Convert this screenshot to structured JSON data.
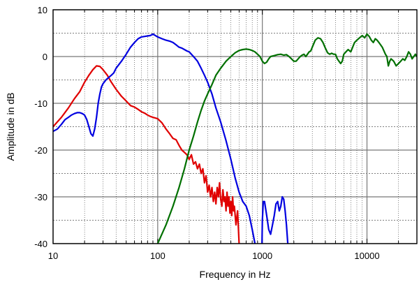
{
  "chart_data": {
    "type": "line",
    "xlabel": "Frequency in Hz",
    "ylabel": "Amplitude in dB",
    "x_scale": "log",
    "xlim": [
      10,
      30000
    ],
    "ylim": [
      -40,
      10
    ],
    "x_ticks": [
      10,
      100,
      1000,
      10000
    ],
    "x_tick_labels": [
      "10",
      "100",
      "1000",
      "10000"
    ],
    "y_ticks": [
      10,
      0,
      -10,
      -20,
      -30,
      -40
    ],
    "y_tick_labels": [
      "10",
      "0",
      "-10",
      "-20",
      "-30",
      "-40"
    ],
    "grid": true,
    "series": [
      {
        "color": "#e00000",
        "points": [
          [
            10,
            -15
          ],
          [
            12,
            -13
          ],
          [
            14,
            -11
          ],
          [
            16,
            -9
          ],
          [
            18,
            -7.5
          ],
          [
            20,
            -5.5
          ],
          [
            22,
            -4
          ],
          [
            24,
            -2.8
          ],
          [
            26,
            -2
          ],
          [
            28,
            -2.1
          ],
          [
            30,
            -2.8
          ],
          [
            33,
            -4
          ],
          [
            36,
            -5.5
          ],
          [
            40,
            -7
          ],
          [
            45,
            -8.5
          ],
          [
            50,
            -9.5
          ],
          [
            55,
            -10.5
          ],
          [
            60,
            -10.8
          ],
          [
            65,
            -11.3
          ],
          [
            70,
            -11.8
          ],
          [
            75,
            -12.1
          ],
          [
            80,
            -12.5
          ],
          [
            85,
            -12.8
          ],
          [
            90,
            -13
          ],
          [
            100,
            -13.3
          ],
          [
            110,
            -14.2
          ],
          [
            120,
            -15.5
          ],
          [
            130,
            -16.5
          ],
          [
            140,
            -17.5
          ],
          [
            150,
            -17.8
          ],
          [
            160,
            -19
          ],
          [
            170,
            -20
          ],
          [
            180,
            -20.5
          ],
          [
            190,
            -21
          ],
          [
            200,
            -22
          ],
          [
            210,
            -21
          ],
          [
            220,
            -23
          ],
          [
            230,
            -22.5
          ],
          [
            240,
            -24
          ],
          [
            250,
            -23
          ],
          [
            260,
            -25
          ],
          [
            270,
            -24
          ],
          [
            280,
            -27
          ],
          [
            290,
            -25.5
          ],
          [
            300,
            -29
          ],
          [
            310,
            -27.5
          ],
          [
            320,
            -30
          ],
          [
            330,
            -28
          ],
          [
            340,
            -31
          ],
          [
            350,
            -29
          ],
          [
            360,
            -31.5
          ],
          [
            370,
            -28
          ],
          [
            380,
            -30
          ],
          [
            390,
            -27
          ],
          [
            400,
            -30.5
          ],
          [
            410,
            -32
          ],
          [
            420,
            -28.5
          ],
          [
            430,
            -31
          ],
          [
            440,
            -30
          ],
          [
            450,
            -33
          ],
          [
            460,
            -29
          ],
          [
            470,
            -32
          ],
          [
            480,
            -30
          ],
          [
            490,
            -33.5
          ],
          [
            500,
            -31
          ],
          [
            510,
            -34
          ],
          [
            520,
            -30
          ],
          [
            530,
            -33
          ],
          [
            540,
            -32
          ],
          [
            560,
            -36
          ],
          [
            580,
            -33
          ],
          [
            600,
            -40
          ]
        ]
      },
      {
        "color": "#0000e0",
        "points": [
          [
            10,
            -16
          ],
          [
            11,
            -15.5
          ],
          [
            12,
            -14.5
          ],
          [
            13,
            -13.5
          ],
          [
            14,
            -13
          ],
          [
            15,
            -12.5
          ],
          [
            16,
            -12.2
          ],
          [
            17,
            -12
          ],
          [
            18,
            -12
          ],
          [
            19,
            -12.2
          ],
          [
            20,
            -12.5
          ],
          [
            21,
            -13.5
          ],
          [
            22,
            -15
          ],
          [
            23,
            -16.5
          ],
          [
            24,
            -17
          ],
          [
            25,
            -15.5
          ],
          [
            26,
            -13
          ],
          [
            27,
            -10
          ],
          [
            28,
            -8
          ],
          [
            29,
            -6.5
          ],
          [
            30,
            -5.8
          ],
          [
            32,
            -5
          ],
          [
            34,
            -4.5
          ],
          [
            36,
            -4
          ],
          [
            38,
            -3.5
          ],
          [
            40,
            -2.5
          ],
          [
            45,
            -1
          ],
          [
            50,
            0.5
          ],
          [
            55,
            2
          ],
          [
            60,
            3
          ],
          [
            65,
            3.8
          ],
          [
            70,
            4.2
          ],
          [
            75,
            4.3
          ],
          [
            80,
            4.4
          ],
          [
            85,
            4.5
          ],
          [
            90,
            4.8
          ],
          [
            95,
            4.5
          ],
          [
            100,
            4.2
          ],
          [
            110,
            3.8
          ],
          [
            120,
            3.5
          ],
          [
            130,
            3.3
          ],
          [
            140,
            3
          ],
          [
            150,
            2.5
          ],
          [
            160,
            2
          ],
          [
            170,
            1.8
          ],
          [
            180,
            1.5
          ],
          [
            190,
            1.2
          ],
          [
            200,
            1
          ],
          [
            220,
            0
          ],
          [
            240,
            -1
          ],
          [
            260,
            -2.5
          ],
          [
            280,
            -4
          ],
          [
            300,
            -5.5
          ],
          [
            330,
            -8
          ],
          [
            360,
            -11
          ],
          [
            400,
            -14
          ],
          [
            450,
            -18
          ],
          [
            500,
            -22
          ],
          [
            550,
            -26
          ],
          [
            600,
            -29
          ],
          [
            650,
            -31
          ],
          [
            700,
            -32
          ],
          [
            750,
            -34
          ],
          [
            800,
            -37
          ],
          [
            850,
            -40
          ],
          [
            900,
            -44
          ]
        ],
        "points2": [
          [
            990,
            -42
          ],
          [
            1000,
            -35
          ],
          [
            1020,
            -31
          ],
          [
            1050,
            -31
          ],
          [
            1100,
            -34
          ],
          [
            1150,
            -37
          ],
          [
            1200,
            -38
          ],
          [
            1250,
            -36
          ],
          [
            1300,
            -34
          ],
          [
            1350,
            -31.5
          ],
          [
            1400,
            -31
          ],
          [
            1450,
            -33
          ],
          [
            1500,
            -32
          ],
          [
            1550,
            -30
          ],
          [
            1600,
            -30.5
          ],
          [
            1650,
            -33
          ],
          [
            1700,
            -36
          ],
          [
            1750,
            -40
          ],
          [
            1800,
            -42
          ]
        ]
      },
      {
        "color": "#007000",
        "points": [
          [
            100,
            -40
          ],
          [
            120,
            -36
          ],
          [
            140,
            -32
          ],
          [
            160,
            -28
          ],
          [
            180,
            -24
          ],
          [
            200,
            -20
          ],
          [
            220,
            -17
          ],
          [
            240,
            -14
          ],
          [
            260,
            -11.5
          ],
          [
            280,
            -9.5
          ],
          [
            300,
            -8
          ],
          [
            330,
            -6
          ],
          [
            360,
            -4
          ],
          [
            400,
            -2.5
          ],
          [
            450,
            -1
          ],
          [
            500,
            0
          ],
          [
            550,
            0.8
          ],
          [
            600,
            1.3
          ],
          [
            650,
            1.5
          ],
          [
            700,
            1.6
          ],
          [
            750,
            1.5
          ],
          [
            800,
            1.3
          ],
          [
            850,
            1
          ],
          [
            900,
            0.5
          ],
          [
            950,
            0
          ],
          [
            1000,
            -1
          ],
          [
            1050,
            -1.5
          ],
          [
            1100,
            -1.2
          ],
          [
            1150,
            -0.5
          ],
          [
            1200,
            0
          ],
          [
            1300,
            0.2
          ],
          [
            1400,
            0.4
          ],
          [
            1500,
            0.5
          ],
          [
            1600,
            0.3
          ],
          [
            1700,
            0.4
          ],
          [
            1800,
            0
          ],
          [
            1900,
            -0.5
          ],
          [
            2000,
            -1
          ],
          [
            2100,
            -1
          ],
          [
            2200,
            -0.5
          ],
          [
            2300,
            0
          ],
          [
            2400,
            0.3
          ],
          [
            2500,
            0.5
          ],
          [
            2600,
            0
          ],
          [
            2700,
            0.5
          ],
          [
            2800,
            1
          ],
          [
            2900,
            1.2
          ],
          [
            3000,
            2
          ],
          [
            3200,
            3.5
          ],
          [
            3400,
            4
          ],
          [
            3600,
            3.8
          ],
          [
            3800,
            3
          ],
          [
            4000,
            1.8
          ],
          [
            4200,
            0.8
          ],
          [
            4400,
            0.5
          ],
          [
            4600,
            0.7
          ],
          [
            4800,
            0.5
          ],
          [
            5000,
            0.5
          ],
          [
            5200,
            -0.5
          ],
          [
            5400,
            -1
          ],
          [
            5600,
            -1.5
          ],
          [
            5800,
            -1
          ],
          [
            6000,
            0.5
          ],
          [
            6300,
            1
          ],
          [
            6600,
            1.5
          ],
          [
            7000,
            1
          ],
          [
            7300,
            2
          ],
          [
            7600,
            3
          ],
          [
            8000,
            3.5
          ],
          [
            8500,
            4
          ],
          [
            9000,
            4.5
          ],
          [
            9500,
            4
          ],
          [
            10000,
            4.8
          ],
          [
            10500,
            4.3
          ],
          [
            11000,
            3.5
          ],
          [
            11500,
            3
          ],
          [
            12000,
            3.8
          ],
          [
            12500,
            3.5
          ],
          [
            13000,
            3
          ],
          [
            14000,
            2
          ],
          [
            15000,
            0.5
          ],
          [
            15500,
            0
          ],
          [
            16000,
            -2
          ],
          [
            16500,
            -1
          ],
          [
            17000,
            -0.5
          ],
          [
            18000,
            -1
          ],
          [
            19000,
            -2
          ],
          [
            20000,
            -1.5
          ],
          [
            21000,
            -1
          ],
          [
            22000,
            -0.5
          ],
          [
            23000,
            -0.8
          ],
          [
            24000,
            0
          ],
          [
            25000,
            1
          ],
          [
            26000,
            0.5
          ],
          [
            27000,
            -0.5
          ],
          [
            28000,
            0
          ],
          [
            29000,
            0.5
          ],
          [
            30000,
            0
          ]
        ]
      }
    ]
  }
}
